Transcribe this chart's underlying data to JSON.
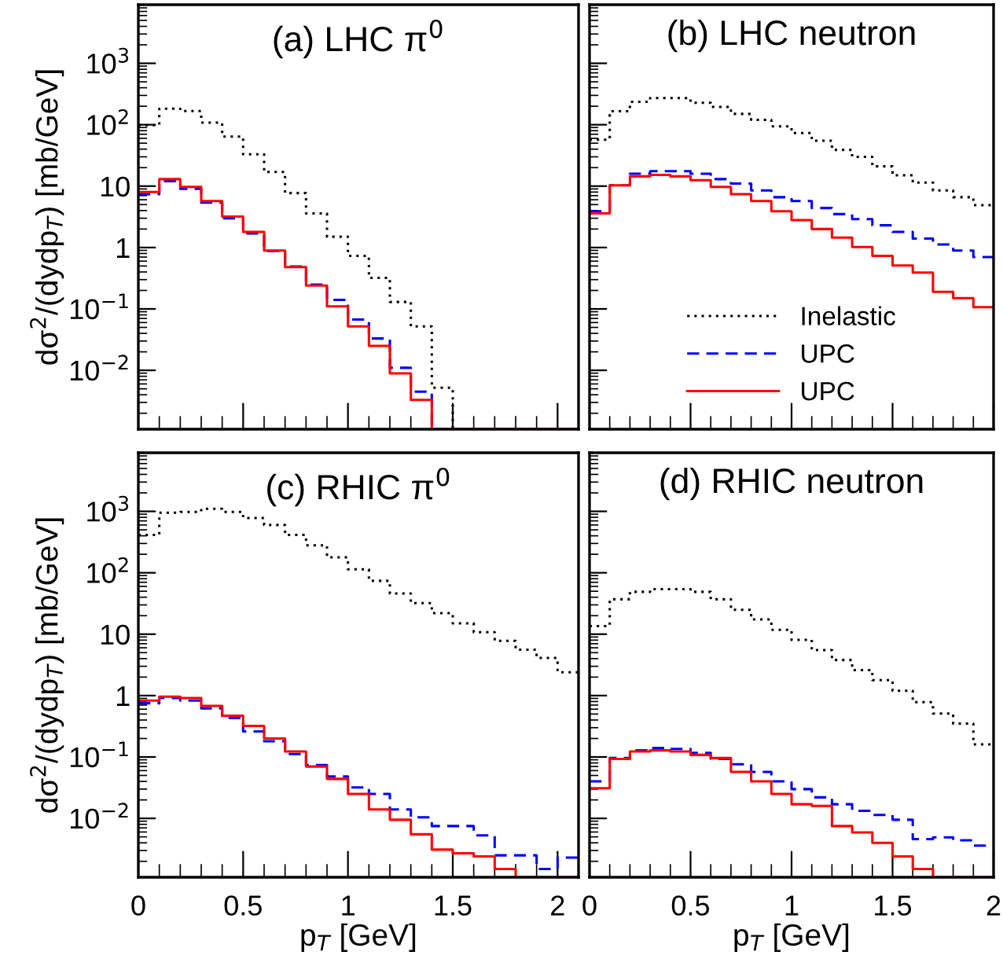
{
  "chart_data": [
    {
      "type": "histogram",
      "title": "(a) LHC π$^{0}$",
      "ylabel": "dσ$^{2}$/(dydp$_{T}$) [mb/GeV]",
      "bins": [
        0,
        0.1,
        0.2,
        0.3,
        0.4,
        0.5,
        0.6,
        0.7,
        0.8,
        0.9,
        1.0,
        1.1,
        1.2,
        1.3,
        1.4,
        1.5,
        1.6,
        1.7,
        1.8,
        1.9,
        2.0,
        2.1
      ],
      "log": "y",
      "xlim": [
        0,
        2.1
      ],
      "ylim": [
        0.0011,
        9000
      ],
      "xticks": [
        0,
        0.5,
        1,
        1.5,
        2
      ],
      "yticks": [
        {
          "value": 0.01,
          "label": "10$^{−2}$"
        },
        {
          "value": 0.1,
          "label": "10$^{−1}$"
        },
        1,
        10,
        {
          "value": 100,
          "label": "10$^{2}$"
        },
        {
          "value": 1000,
          "label": "10$^{3}$"
        }
      ],
      "tick_labels": "y",
      "grid": false,
      "legend": false,
      "series": [
        {
          "color": "#000000",
          "line_style": "dotted",
          "values": [
            98,
            183,
            167,
            108,
            64,
            33,
            17,
            7.7,
            3.6,
            1.5,
            0.73,
            0.32,
            0.13,
            0.052,
            0.0052,
            null,
            null,
            null,
            null,
            null,
            null
          ]
        },
        {
          "color": "#0000ff",
          "line_style": "dashed",
          "values": [
            7.4,
            12,
            9,
            5.4,
            3.0,
            1.7,
            0.88,
            0.49,
            0.25,
            0.14,
            0.067,
            0.033,
            0.011,
            0.0045,
            null,
            null,
            null,
            null,
            null,
            null,
            null
          ]
        },
        {
          "color": "#ff0000",
          "line_style": "solid",
          "values": [
            8,
            13,
            9.7,
            5.7,
            3.2,
            1.8,
            0.89,
            0.48,
            0.24,
            0.11,
            0.052,
            0.025,
            0.0089,
            0.0033,
            null,
            null,
            null,
            null,
            null,
            null,
            null
          ]
        }
      ]
    },
    {
      "type": "histogram",
      "title": "(b) LHC neutron",
      "bins": [
        0,
        0.1,
        0.2,
        0.3,
        0.4,
        0.5,
        0.6,
        0.7,
        0.8,
        0.9,
        1.0,
        1.1,
        1.2,
        1.3,
        1.4,
        1.5,
        1.6,
        1.7,
        1.8,
        1.9,
        2.0
      ],
      "log": "y",
      "xlim": [
        0,
        2
      ],
      "ylim": [
        0.0011,
        9000
      ],
      "xticks": [
        0,
        0.5,
        1,
        1.5,
        2
      ],
      "yticks": [
        0.01,
        0.1,
        1,
        10,
        100,
        1000
      ],
      "tick_labels": false,
      "grid": false,
      "legend": "bottom",
      "series": [
        {
          "name": "Inelastic",
          "color": "#000000",
          "line_style": "dotted",
          "values": [
            57,
            166,
            236,
            272,
            272,
            228,
            195,
            150,
            120,
            94,
            73,
            55,
            39,
            30,
            21,
            15,
            11.4,
            8.5,
            6.6,
            4.9
          ]
        },
        {
          "name": "UPC",
          "color": "#0000ff",
          "line_style": "dashed",
          "values": [
            3.9,
            10.3,
            15.9,
            17.5,
            17.5,
            15.9,
            13,
            11,
            8.5,
            6.6,
            5.7,
            4.4,
            3.5,
            2.9,
            2.3,
            1.8,
            1.4,
            1.12,
            0.89,
            0.7
          ]
        },
        {
          "name": "UPC",
          "color": "#ff0000",
          "line_style": "solid",
          "values": [
            3.6,
            10.3,
            14.4,
            15.2,
            14.4,
            12.5,
            9.7,
            7.4,
            5.7,
            3.9,
            2.8,
            2.0,
            1.45,
            1.02,
            0.73,
            0.51,
            0.39,
            0.19,
            0.15,
            0.107
          ]
        }
      ]
    },
    {
      "type": "histogram",
      "title": "(c) RHIC π$^{0}$",
      "xlabel": "p$_{T}$ [GeV]",
      "ylabel": "dσ$^{2}$/(dydp$_{T}$) [mb/GeV]",
      "bins": [
        0,
        0.1,
        0.2,
        0.3,
        0.4,
        0.5,
        0.6,
        0.7,
        0.8,
        0.9,
        1.0,
        1.1,
        1.2,
        1.3,
        1.4,
        1.5,
        1.6,
        1.7,
        1.8,
        1.9,
        2.0,
        2.1
      ],
      "log": "y",
      "xlim": [
        0,
        2.1
      ],
      "ylim": [
        0.0011,
        9000
      ],
      "xticks": [
        0,
        0.5,
        1,
        1.5,
        2
      ],
      "yticks": [
        {
          "value": 0.01,
          "label": "10$^{−2}$"
        },
        {
          "value": 0.1,
          "label": "10$^{−1}$"
        },
        1,
        10,
        {
          "value": 100,
          "label": "10$^{2}$"
        },
        {
          "value": 1000,
          "label": "10$^{3}$"
        }
      ],
      "grid": false,
      "legend": false,
      "series": [
        {
          "color": "#000000",
          "line_style": "dotted",
          "values": [
            413,
            950,
            980,
            1100,
            980,
            780,
            600,
            413,
            280,
            178,
            114,
            74,
            46,
            32,
            22,
            15,
            10.8,
            7.8,
            5.6,
            4.1,
            2.4
          ]
        },
        {
          "color": "#0000ff",
          "line_style": "dashed",
          "values": [
            0.75,
            0.91,
            0.83,
            0.62,
            0.43,
            0.26,
            0.18,
            0.112,
            0.074,
            0.048,
            0.032,
            0.025,
            0.014,
            0.0104,
            0.0075,
            0.0075,
            0.0053,
            0.0025,
            0.0025,
            0.0015,
            0.0023
          ]
        },
        {
          "color": "#ff0000",
          "line_style": "solid",
          "values": [
            0.83,
            0.96,
            0.91,
            0.68,
            0.47,
            0.32,
            0.2,
            0.123,
            0.07,
            0.044,
            0.025,
            0.014,
            0.0095,
            0.0055,
            0.0031,
            0.0027,
            0.0024,
            0.0015,
            null,
            null,
            null
          ]
        }
      ]
    },
    {
      "type": "histogram",
      "title": "(d) RHIC neutron",
      "xlabel": "p$_{T}$ [GeV]",
      "bins": [
        0,
        0.1,
        0.2,
        0.3,
        0.4,
        0.5,
        0.6,
        0.7,
        0.8,
        0.9,
        1.0,
        1.1,
        1.2,
        1.3,
        1.4,
        1.5,
        1.6,
        1.7,
        1.8,
        1.9,
        2.0
      ],
      "log": "y",
      "xlim": [
        0,
        2
      ],
      "ylim": [
        0.0011,
        9000
      ],
      "xticks": [
        0,
        0.5,
        1,
        1.5,
        2
      ],
      "yticks": [
        0.01,
        0.1,
        1,
        10,
        100,
        1000
      ],
      "tick_labels": "x",
      "grid": false,
      "legend": false,
      "series": [
        {
          "color": "#000000",
          "line_style": "dotted",
          "values": [
            13.5,
            37,
            49,
            54,
            54,
            49,
            37,
            25,
            17.4,
            11.8,
            8.1,
            5.5,
            3.8,
            2.6,
            1.78,
            1.2,
            0.78,
            0.51,
            0.35,
            0.16
          ]
        },
        {
          "color": "#0000ff",
          "line_style": "dashed",
          "values": [
            0.04,
            0.096,
            0.128,
            0.14,
            0.135,
            0.117,
            0.093,
            0.076,
            0.057,
            0.04,
            0.03,
            0.022,
            0.017,
            0.0133,
            0.0114,
            0.0095,
            0.0046,
            0.0049,
            0.0044,
            0.0036
          ]
        },
        {
          "color": "#ff0000",
          "line_style": "solid",
          "values": [
            0.031,
            0.093,
            0.123,
            0.128,
            0.123,
            0.108,
            0.096,
            0.057,
            0.04,
            0.025,
            0.017,
            0.016,
            0.0075,
            0.0059,
            0.004,
            0.0024,
            0.0015,
            null,
            null,
            null
          ]
        }
      ]
    }
  ]
}
